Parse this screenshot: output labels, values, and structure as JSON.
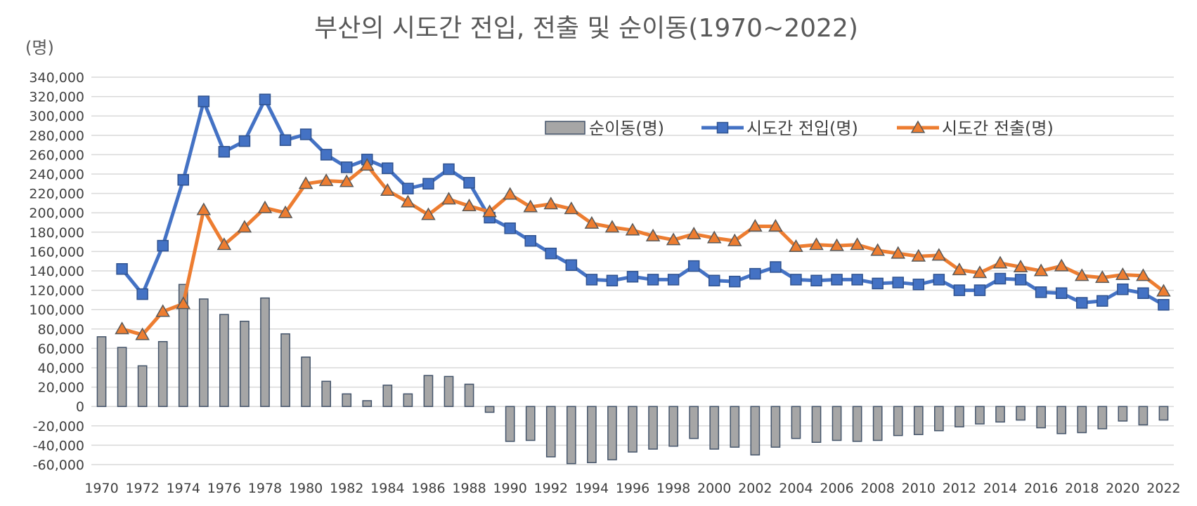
{
  "chart_data": {
    "type": "bar+line",
    "title": "부산의 시도간 전입, 전출 및 순이동(1970~2022)",
    "unit_label": "(명)",
    "x": [
      1970,
      1971,
      1972,
      1973,
      1974,
      1975,
      1976,
      1977,
      1978,
      1979,
      1980,
      1981,
      1982,
      1983,
      1984,
      1985,
      1986,
      1987,
      1988,
      1989,
      1990,
      1991,
      1992,
      1993,
      1994,
      1995,
      1996,
      1997,
      1998,
      1999,
      2000,
      2001,
      2002,
      2003,
      2004,
      2005,
      2006,
      2007,
      2008,
      2009,
      2010,
      2011,
      2012,
      2013,
      2014,
      2015,
      2016,
      2017,
      2018,
      2019,
      2020,
      2021,
      2022
    ],
    "x_tick_labels": [
      "1970",
      "1972",
      "1974",
      "1976",
      "1978",
      "1980",
      "1982",
      "1984",
      "1986",
      "1988",
      "1990",
      "1992",
      "1994",
      "1996",
      "1998",
      "2000",
      "2002",
      "2004",
      "2006",
      "2008",
      "2010",
      "2012",
      "2014",
      "2016",
      "2018",
      "2020",
      "2022"
    ],
    "ylim": [
      -60000,
      340000
    ],
    "y_tick_step": 20000,
    "y_tick_labels": [
      "340,000",
      "320,000",
      "300,000",
      "280,000",
      "260,000",
      "240,000",
      "220,000",
      "200,000",
      "180,000",
      "160,000",
      "140,000",
      "120,000",
      "100,000",
      "80,000",
      "60,000",
      "40,000",
      "20,000",
      "0",
      "-20,000",
      "-40,000",
      "-60,000"
    ],
    "grid": true,
    "legend_placement": "top-right",
    "series": [
      {
        "name": "순이동(명)",
        "type": "bar",
        "color": "#a6a6a6",
        "values": [
          72000,
          61000,
          42000,
          67000,
          126000,
          111000,
          95000,
          88000,
          112000,
          75000,
          51000,
          26000,
          13000,
          6000,
          22000,
          13000,
          32000,
          31000,
          23000,
          -6000,
          -36000,
          -35000,
          -52000,
          -59000,
          -58000,
          -55000,
          -47000,
          -44000,
          -41000,
          -33000,
          -44000,
          -42000,
          -50000,
          -42000,
          -33000,
          -37000,
          -35000,
          -36000,
          -35000,
          -30000,
          -29000,
          -25000,
          -21000,
          -18000,
          -16000,
          -14000,
          -22000,
          -28000,
          -27000,
          -23000,
          -15000,
          -19000,
          -14000
        ]
      },
      {
        "name": "시도간 전입(명)",
        "type": "line",
        "marker": "square",
        "color": "#4472c4",
        "values": [
          null,
          142000,
          116000,
          166000,
          234000,
          315000,
          263000,
          274000,
          317000,
          275000,
          281000,
          260000,
          247000,
          255000,
          246000,
          225000,
          230000,
          245000,
          231000,
          195000,
          184000,
          171000,
          158000,
          146000,
          131000,
          130000,
          134000,
          131000,
          131000,
          145000,
          130000,
          129000,
          137000,
          144000,
          131000,
          130000,
          131000,
          131000,
          127000,
          128000,
          126000,
          131000,
          120000,
          120000,
          132000,
          131000,
          118000,
          117000,
          107000,
          109000,
          121000,
          117000,
          105000
        ]
      },
      {
        "name": "시도간 전출(명)",
        "type": "line",
        "marker": "triangle",
        "color": "#ed7d31",
        "values": [
          null,
          80000,
          74000,
          98000,
          106000,
          203000,
          167000,
          185000,
          205000,
          200000,
          230000,
          233000,
          232000,
          249000,
          223000,
          211000,
          198000,
          214000,
          207000,
          201000,
          219000,
          206000,
          209000,
          204000,
          189000,
          185000,
          182000,
          176000,
          172000,
          178000,
          174000,
          171000,
          186000,
          186000,
          165000,
          167000,
          166000,
          167000,
          161000,
          158000,
          155000,
          156000,
          141000,
          138000,
          148000,
          144000,
          140000,
          145000,
          135000,
          133000,
          136000,
          135000,
          119000
        ]
      }
    ]
  }
}
